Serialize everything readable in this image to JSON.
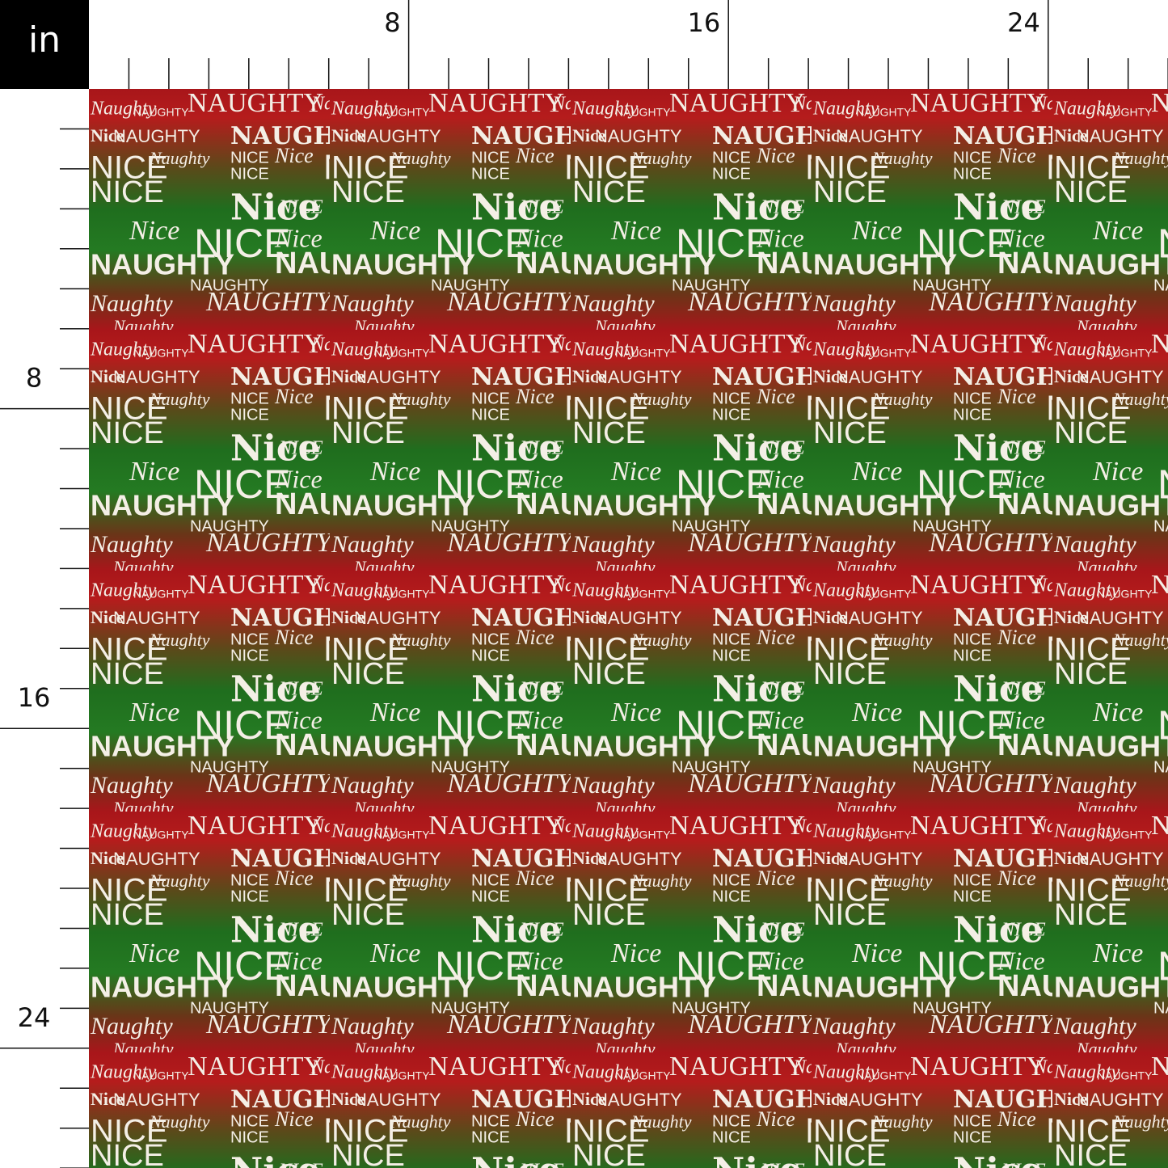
{
  "ruler": {
    "unit": "in",
    "top_labels": [
      "8",
      "16",
      "24"
    ],
    "left_labels": [
      "8",
      "16",
      "24"
    ]
  },
  "pattern_words": [
    "Naughty",
    "NAUGHTY",
    "Naughty",
    "NAUGHTY",
    "Nice",
    "NAUGHTY",
    "NAUGHTY",
    "NICE",
    "Naughty",
    "NICE",
    "Nice",
    "NICE",
    "NICE",
    "Nice",
    "NICE",
    "NICE",
    "Nice",
    "NICE",
    "Nice",
    "NAUGHTY",
    "NAUGHTY",
    "NAUGHTY",
    "Naughty",
    "NAUGHTY",
    "Naughty",
    "NAUGHTY",
    "Naughty"
  ]
}
